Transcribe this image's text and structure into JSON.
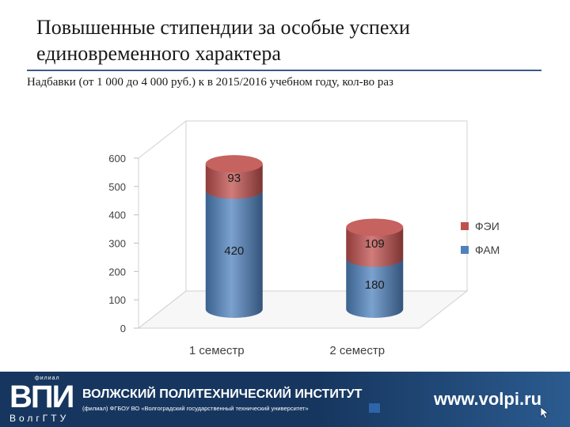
{
  "slide": {
    "title": "Повышенные стипендии за особые успехи единовременного характера",
    "subtitle": "Надбавки (от 1 000 до 4 000 руб.) к  в 2015/2016 учебном году, кол-во раз"
  },
  "chart_data": {
    "type": "bar",
    "stacked": true,
    "style": "3d-cylinder",
    "categories": [
      "1 семестр",
      "2 семестр"
    ],
    "series": [
      {
        "name": "ФАМ",
        "values": [
          420,
          180
        ],
        "color": "#4f81bd"
      },
      {
        "name": "ФЭИ",
        "values": [
          93,
          109
        ],
        "color": "#c0504d"
      }
    ],
    "y_ticks": [
      "0",
      "100",
      "200",
      "300",
      "400",
      "500",
      "600"
    ],
    "ylim": [
      0,
      600
    ],
    "legend_position": "right",
    "grid": false
  },
  "footer": {
    "logo_top": "филиал",
    "logo_main": "ВПИ",
    "logo_sub": "ВолгГТУ",
    "institute_name": "ВОЛЖСКИЙ ПОЛИТЕХНИЧЕСКИЙ ИНСТИТУТ",
    "institute_full": "(филиал) ФГБОУ ВО «Волгоградский государственный технический университет»",
    "website": "www.volpi.ru",
    "cursor_icon": "mouse-pointer-icon"
  }
}
